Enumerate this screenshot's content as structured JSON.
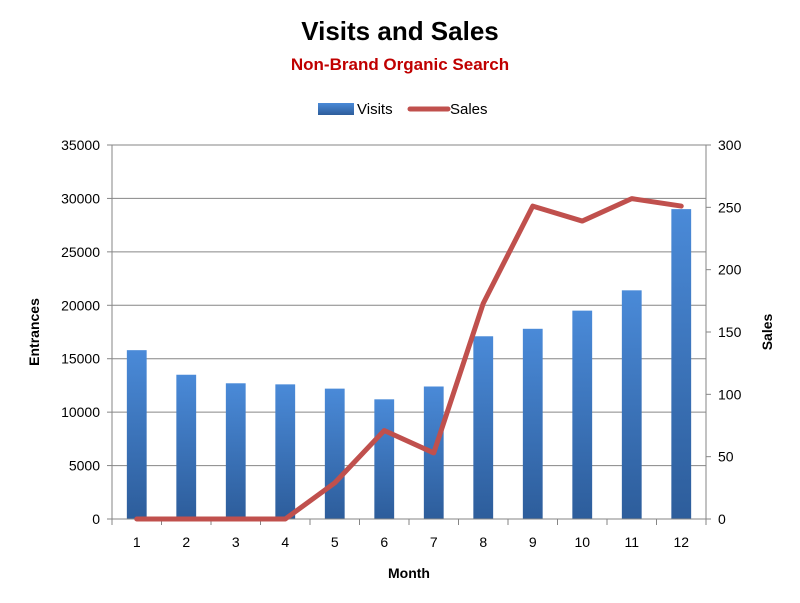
{
  "chart_data": {
    "type": "bar",
    "title": "Visits and Sales",
    "subtitle": "Non-Brand Organic Search",
    "xlabel": "Month",
    "ylabel": "Entrances",
    "y2label": "Sales",
    "categories": [
      "1",
      "2",
      "3",
      "4",
      "5",
      "6",
      "7",
      "8",
      "9",
      "10",
      "11",
      "12"
    ],
    "ylim": [
      0,
      35000
    ],
    "y2lim": [
      0,
      300
    ],
    "yticks": [
      "0",
      "5000",
      "10000",
      "15000",
      "20000",
      "25000",
      "30000",
      "35000"
    ],
    "y2ticks": [
      "0",
      "50",
      "100",
      "150",
      "200",
      "250",
      "300"
    ],
    "grid": true,
    "legend_position": "top",
    "series": [
      {
        "name": "Visits",
        "type": "bar",
        "axis": "left",
        "color": "#3c78c8",
        "values": [
          15800,
          13500,
          12700,
          12600,
          12200,
          11200,
          12400,
          17100,
          17800,
          19500,
          21400,
          29000
        ]
      },
      {
        "name": "Sales",
        "type": "line",
        "axis": "right",
        "color": "#c0504d",
        "values": [
          0,
          0,
          0,
          0,
          29,
          71,
          53,
          173,
          251,
          239,
          257,
          251
        ]
      }
    ],
    "colors": {
      "subtitle": "#c00000",
      "grid": "#868686",
      "axis": "#868686",
      "bar_top": "#4a8ad8",
      "bar_bottom": "#2d5d9b",
      "line": "#c0504d"
    }
  }
}
